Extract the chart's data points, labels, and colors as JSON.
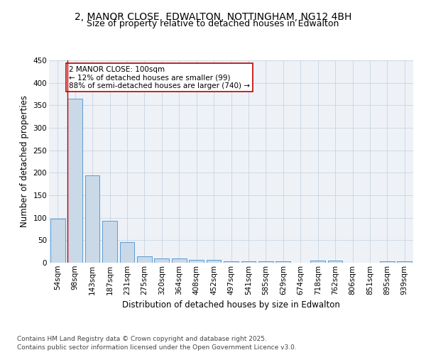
{
  "title_line1": "2, MANOR CLOSE, EDWALTON, NOTTINGHAM, NG12 4BH",
  "title_line2": "Size of property relative to detached houses in Edwalton",
  "xlabel": "Distribution of detached houses by size in Edwalton",
  "ylabel": "Number of detached properties",
  "categories": [
    "54sqm",
    "98sqm",
    "143sqm",
    "187sqm",
    "231sqm",
    "275sqm",
    "320sqm",
    "364sqm",
    "408sqm",
    "452sqm",
    "497sqm",
    "541sqm",
    "585sqm",
    "629sqm",
    "674sqm",
    "718sqm",
    "762sqm",
    "806sqm",
    "851sqm",
    "895sqm",
    "939sqm"
  ],
  "values": [
    98,
    365,
    195,
    93,
    46,
    14,
    10,
    10,
    7,
    6,
    3,
    3,
    3,
    3,
    0,
    5,
    5,
    0,
    0,
    3,
    3
  ],
  "bar_color": "#c9d9e8",
  "bar_edge_color": "#5b9bd5",
  "annotation_box_text": "2 MANOR CLOSE: 100sqm\n← 12% of detached houses are smaller (99)\n88% of semi-detached houses are larger (740) →",
  "annotation_box_color": "#c00000",
  "annotation_box_facecolor": "white",
  "redline_x": 1,
  "ylim": [
    0,
    450
  ],
  "yticks": [
    0,
    50,
    100,
    150,
    200,
    250,
    300,
    350,
    400,
    450
  ],
  "footer_line1": "Contains HM Land Registry data © Crown copyright and database right 2025.",
  "footer_line2": "Contains public sector information licensed under the Open Government Licence v3.0.",
  "bg_color": "#eef2f7",
  "grid_color": "#c8d4e0",
  "title_fontsize": 10,
  "subtitle_fontsize": 9,
  "axis_label_fontsize": 8.5,
  "tick_fontsize": 7.5,
  "annotation_fontsize": 7.5,
  "footer_fontsize": 6.5
}
